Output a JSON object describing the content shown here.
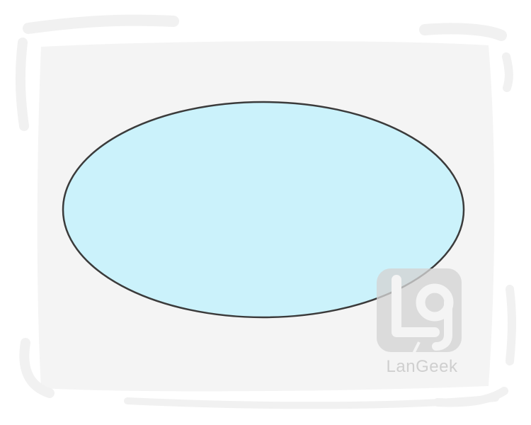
{
  "illustration": {
    "subject": "ellipse",
    "colors": {
      "page_background": "#ffffff",
      "card_background": "#f4f4f4",
      "card_edge_strokes": "#f1f1f1",
      "shape_fill": "#cbf2fb",
      "shape_stroke": "#3b3b3b",
      "watermark": "#d3d3d3"
    }
  },
  "watermark": {
    "brand_text": "LanGeek",
    "logo_icon": "langeek-logo-icon"
  }
}
